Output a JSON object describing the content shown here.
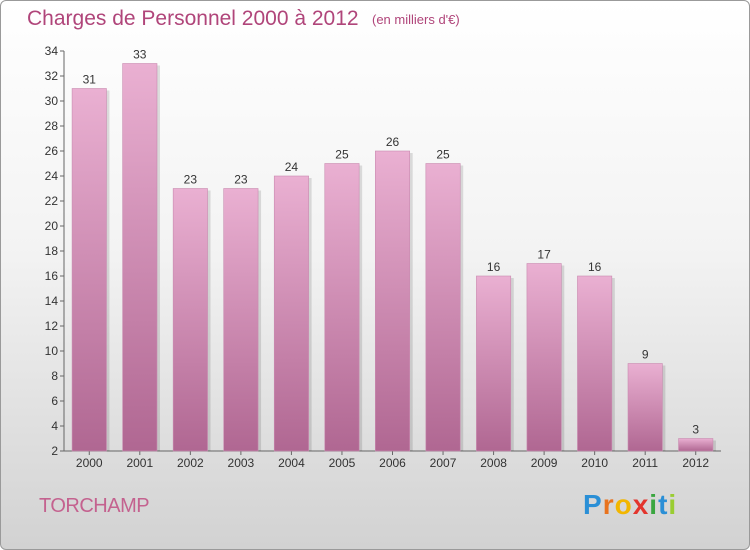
{
  "header": {
    "title": "Charges de Personnel 2000 à 2012",
    "subtitle": "(en milliers d'€)"
  },
  "footer": {
    "commune": "TORCHAMP",
    "logo": {
      "letters": [
        "P",
        "r",
        "o",
        "x",
        "i",
        "t",
        "i"
      ],
      "colors": [
        "#2a8fd6",
        "#e8731e",
        "#f2b600",
        "#e3352d",
        "#3aa640",
        "#2a8fd6",
        "#9acd32"
      ]
    }
  },
  "colors": {
    "bar_light": "#eab0d2",
    "bar_dark": "#b06792",
    "axis": "#666666"
  },
  "chart_data": {
    "type": "bar",
    "title": "Charges de Personnel 2000 à 2012",
    "subtitle": "(en milliers d'€)",
    "categories": [
      "2000",
      "2001",
      "2002",
      "2003",
      "2004",
      "2005",
      "2006",
      "2007",
      "2008",
      "2009",
      "2010",
      "2011",
      "2012"
    ],
    "values": [
      31,
      33,
      23,
      23,
      24,
      25,
      26,
      25,
      16,
      17,
      16,
      9,
      3
    ],
    "ylim": [
      2,
      34
    ],
    "yticks": [
      2,
      4,
      6,
      8,
      10,
      12,
      14,
      16,
      18,
      20,
      22,
      24,
      26,
      28,
      30,
      32,
      34
    ],
    "grid": false
  }
}
